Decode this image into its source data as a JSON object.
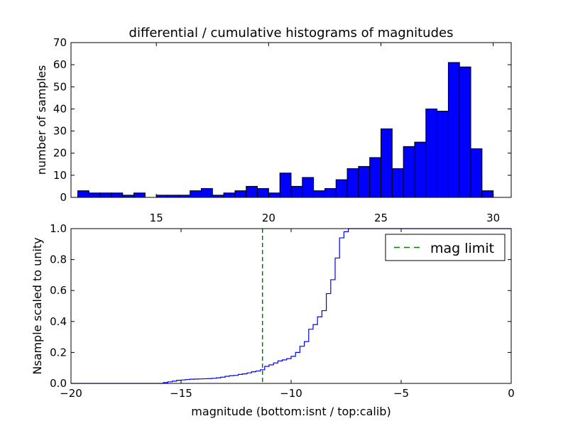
{
  "title": "differential / cumulative histograms of magnitudes",
  "colors": {
    "bar": "#0000ff",
    "step": "#0000ff",
    "limit": "#007f00",
    "axes": "#000000"
  },
  "chart_data": [
    {
      "type": "bar",
      "title": "differential / cumulative histograms of magnitudes",
      "xlabel": "",
      "ylabel": "number of samples",
      "xlim": [
        11.2,
        30.8
      ],
      "ylim": [
        0,
        70
      ],
      "xticks": [
        15,
        20,
        25,
        30
      ],
      "yticks": [
        0,
        10,
        20,
        30,
        40,
        50,
        60,
        70
      ],
      "x_tick_position": "top-of-lower-panel",
      "bin_edges": [
        11.5,
        12.0,
        12.5,
        13.0,
        13.5,
        14.0,
        14.5,
        15.0,
        15.5,
        16.0,
        16.5,
        17.0,
        17.5,
        18.0,
        18.5,
        19.0,
        19.5,
        20.0,
        20.5,
        21.0,
        21.5,
        22.0,
        22.5,
        23.0,
        23.5,
        24.0,
        24.5,
        25.0,
        25.5,
        26.0,
        26.5,
        27.0,
        27.5,
        28.0,
        28.5,
        29.0,
        29.5,
        30.0
      ],
      "values": [
        3,
        2,
        2,
        2,
        1,
        2,
        0,
        1,
        1,
        1,
        3,
        4,
        1,
        2,
        3,
        5,
        4,
        2,
        11,
        5,
        9,
        3,
        4,
        8,
        13,
        14,
        18,
        31,
        13,
        23,
        25,
        40,
        39,
        61,
        59,
        22,
        3
      ],
      "grid": false
    },
    {
      "type": "line",
      "xlabel": "magnitude (bottom:isnt / top:calib)",
      "ylabel": "Nsample scaled to unity",
      "xlim": [
        -20,
        0
      ],
      "ylim": [
        0,
        1.0
      ],
      "xticks": [
        -20,
        -15,
        -10,
        -5,
        0
      ],
      "xtick_labels": [
        "−20",
        "−15",
        "−10",
        "−5",
        "0"
      ],
      "yticks": [
        0.0,
        0.2,
        0.4,
        0.6,
        0.8,
        1.0
      ],
      "ytick_labels": [
        "0.0",
        "0.2",
        "0.4",
        "0.6",
        "0.8",
        "1.0"
      ],
      "series": [
        {
          "style": "step",
          "x": [
            -20.0,
            -15.8,
            -15.6,
            -15.4,
            -15.2,
            -15.0,
            -14.8,
            -14.6,
            -14.4,
            -14.2,
            -14.0,
            -13.8,
            -13.6,
            -13.4,
            -13.2,
            -13.0,
            -12.8,
            -12.6,
            -12.4,
            -12.2,
            -12.0,
            -11.8,
            -11.6,
            -11.4,
            -11.2,
            -11.0,
            -10.8,
            -10.6,
            -10.4,
            -10.2,
            -10.0,
            -9.8,
            -9.6,
            -9.4,
            -9.2,
            -9.0,
            -8.8,
            -8.6,
            -8.4,
            -8.2,
            -8.0,
            -7.8,
            -7.6,
            -7.4,
            -7.2,
            -7.0,
            -6.8,
            -6.6
          ],
          "y": [
            0.0,
            0.005,
            0.01,
            0.015,
            0.02,
            0.022,
            0.025,
            0.027,
            0.028,
            0.029,
            0.03,
            0.031,
            0.033,
            0.036,
            0.04,
            0.046,
            0.05,
            0.052,
            0.058,
            0.062,
            0.068,
            0.075,
            0.08,
            0.088,
            0.11,
            0.12,
            0.132,
            0.145,
            0.152,
            0.16,
            0.175,
            0.2,
            0.24,
            0.27,
            0.35,
            0.38,
            0.43,
            0.47,
            0.58,
            0.67,
            0.81,
            0.94,
            0.98,
            1.0,
            1.0,
            1.0,
            1.0,
            1.0
          ]
        },
        {
          "name": "mag limit",
          "style": "dashed-vertical",
          "x_value": -11.3
        }
      ],
      "legend": {
        "placement": "top-right",
        "entries": [
          "mag limit"
        ]
      },
      "grid": false
    }
  ]
}
